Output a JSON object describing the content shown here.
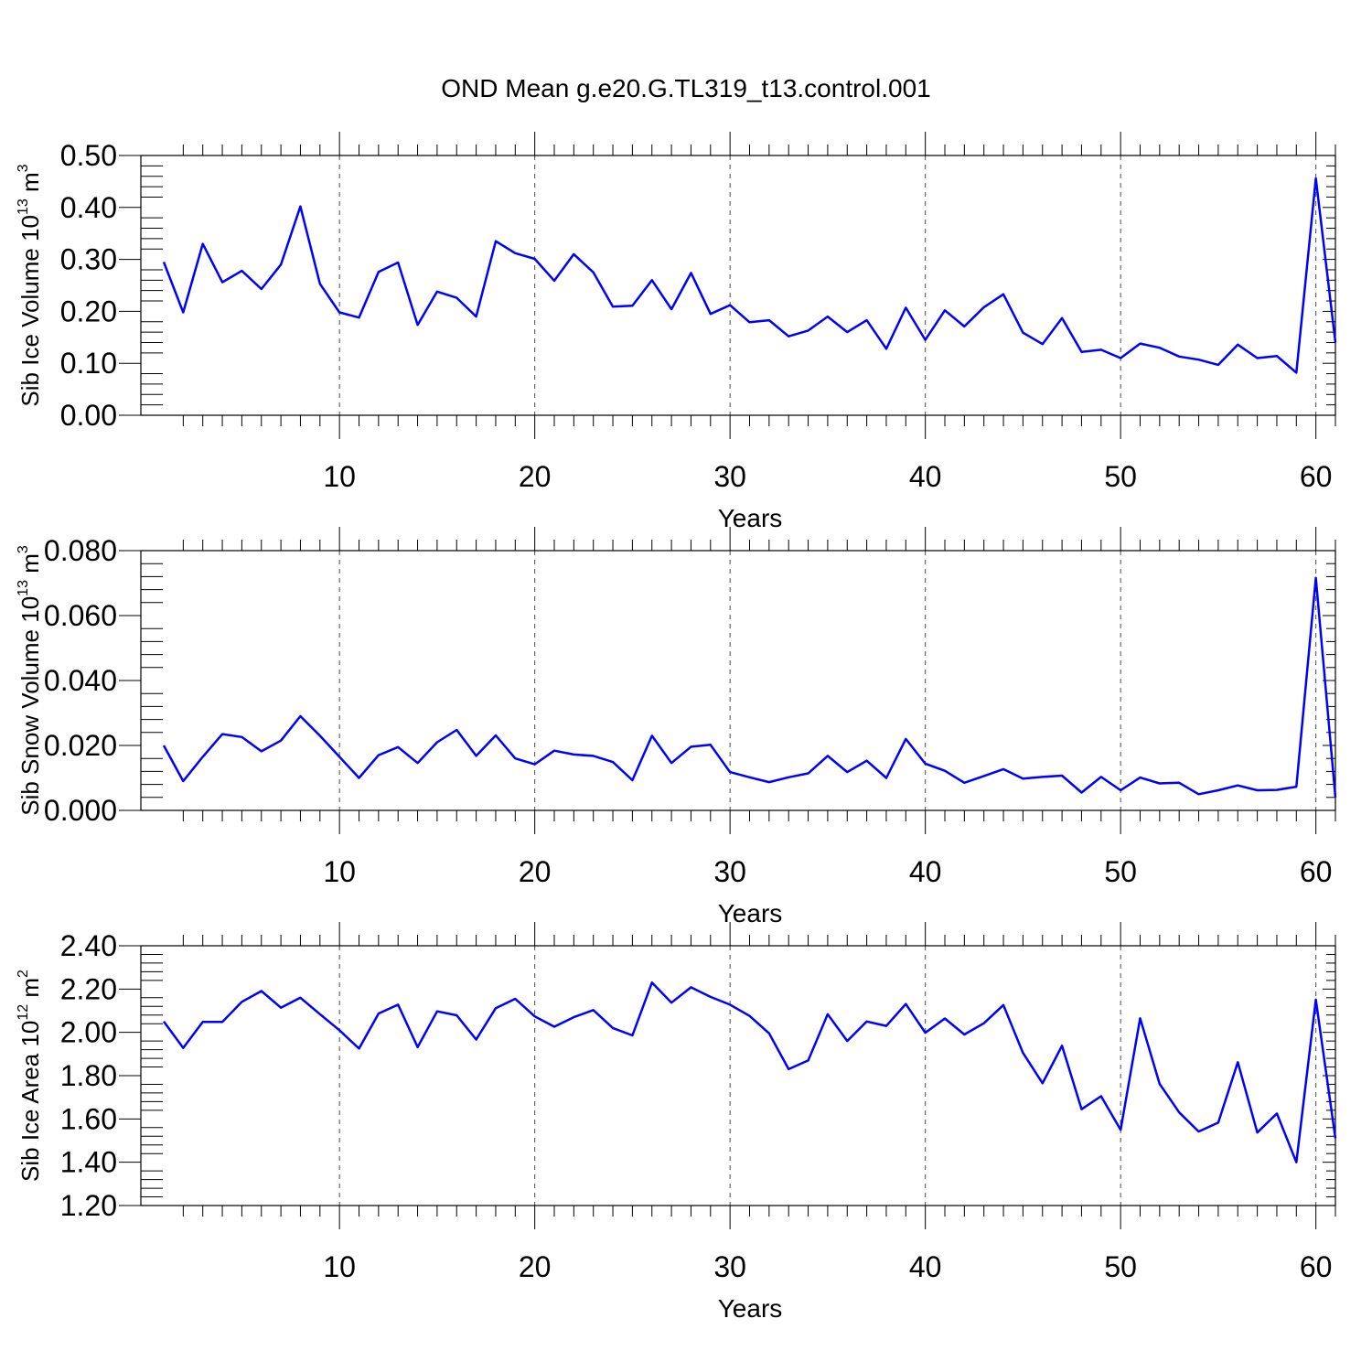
{
  "chart_data": {
    "type": "line",
    "title": "OND Mean g.e20.G.TL319_t13.control.001",
    "color": "#0000ff",
    "x_start": 1,
    "x_end": 61,
    "xlim": [
      1,
      61
    ],
    "xticks": [
      10,
      20,
      30,
      40,
      50,
      60
    ],
    "xgrid": [
      10,
      20,
      30,
      40,
      50,
      60
    ],
    "panels": [
      {
        "name": "ice-volume",
        "xlabel": "Years",
        "ylabel_main": "Sib Ice Volume 10",
        "ylabel_exp": "13",
        "ylabel_unit": " m",
        "ylabel_unit_exp": "3",
        "ylim": [
          0.0,
          0.5
        ],
        "yticks": [
          "0.00",
          "0.10",
          "0.20",
          "0.30",
          "0.40",
          "0.50"
        ],
        "ytick_values": [
          0.0,
          0.1,
          0.2,
          0.3,
          0.4,
          0.5
        ],
        "values": [
          0.295,
          0.198,
          0.33,
          0.256,
          0.278,
          0.243,
          0.29,
          0.402,
          0.253,
          0.198,
          0.188,
          0.276,
          0.294,
          0.174,
          0.238,
          0.226,
          0.19,
          0.335,
          0.312,
          0.301,
          0.259,
          0.31,
          0.275,
          0.209,
          0.211,
          0.26,
          0.204,
          0.274,
          0.195,
          0.212,
          0.179,
          0.183,
          0.152,
          0.163,
          0.19,
          0.16,
          0.183,
          0.128,
          0.207,
          0.145,
          0.202,
          0.171,
          0.208,
          0.233,
          0.159,
          0.137,
          0.187,
          0.122,
          0.126,
          0.11,
          0.138,
          0.13,
          0.113,
          0.107,
          0.097,
          0.136,
          0.11,
          0.114,
          0.082,
          0.456,
          0.14
        ]
      },
      {
        "name": "snow-volume",
        "xlabel": "Years",
        "ylabel_main": "Sib Snow Volume 10",
        "ylabel_exp": "13",
        "ylabel_unit": " m",
        "ylabel_unit_exp": "3",
        "ylim": [
          0.0,
          0.08
        ],
        "yticks": [
          "0.000",
          "0.020",
          "0.040",
          "0.060",
          "0.080"
        ],
        "ytick_values": [
          0.0,
          0.02,
          0.04,
          0.06,
          0.08
        ],
        "values": [
          0.02,
          0.009,
          0.0165,
          0.0235,
          0.0226,
          0.0182,
          0.0215,
          0.029,
          0.023,
          0.0165,
          0.01,
          0.017,
          0.0195,
          0.0146,
          0.021,
          0.0248,
          0.0168,
          0.0231,
          0.016,
          0.0142,
          0.0184,
          0.0172,
          0.0168,
          0.0149,
          0.0093,
          0.023,
          0.0146,
          0.0196,
          0.0202,
          0.0118,
          0.0102,
          0.0087,
          0.0102,
          0.0114,
          0.0168,
          0.0118,
          0.0153,
          0.01,
          0.022,
          0.0144,
          0.0122,
          0.0085,
          0.0106,
          0.0127,
          0.0098,
          0.0103,
          0.0107,
          0.0055,
          0.0103,
          0.0062,
          0.0101,
          0.0083,
          0.0085,
          0.005,
          0.0062,
          0.0077,
          0.0062,
          0.0063,
          0.0073,
          0.0716,
          0.004
        ]
      },
      {
        "name": "ice-area",
        "xlabel": "Years",
        "ylabel_main": "Sib Ice Area 10",
        "ylabel_exp": "12",
        "ylabel_unit": " m",
        "ylabel_unit_exp": "2",
        "ylim": [
          1.2,
          2.4
        ],
        "yticks": [
          "1.20",
          "1.40",
          "1.60",
          "1.80",
          "2.00",
          "2.20",
          "2.40"
        ],
        "ytick_values": [
          1.2,
          1.4,
          1.6,
          1.8,
          2.0,
          2.2,
          2.4
        ],
        "values": [
          2.05,
          1.928,
          2.048,
          2.048,
          2.141,
          2.191,
          2.114,
          2.16,
          2.084,
          2.01,
          1.925,
          2.087,
          2.128,
          1.932,
          2.097,
          2.079,
          1.967,
          2.112,
          2.155,
          2.074,
          2.026,
          2.07,
          2.103,
          2.02,
          1.986,
          2.23,
          2.137,
          2.208,
          2.164,
          2.128,
          2.076,
          1.995,
          1.83,
          1.87,
          2.084,
          1.96,
          2.05,
          2.03,
          2.131,
          1.998,
          2.064,
          1.99,
          2.042,
          2.126,
          1.905,
          1.765,
          1.938,
          1.645,
          1.705,
          1.55,
          2.065,
          1.762,
          1.63,
          1.542,
          1.583,
          1.862,
          1.537,
          1.625,
          1.4,
          2.151,
          1.51
        ]
      }
    ]
  }
}
